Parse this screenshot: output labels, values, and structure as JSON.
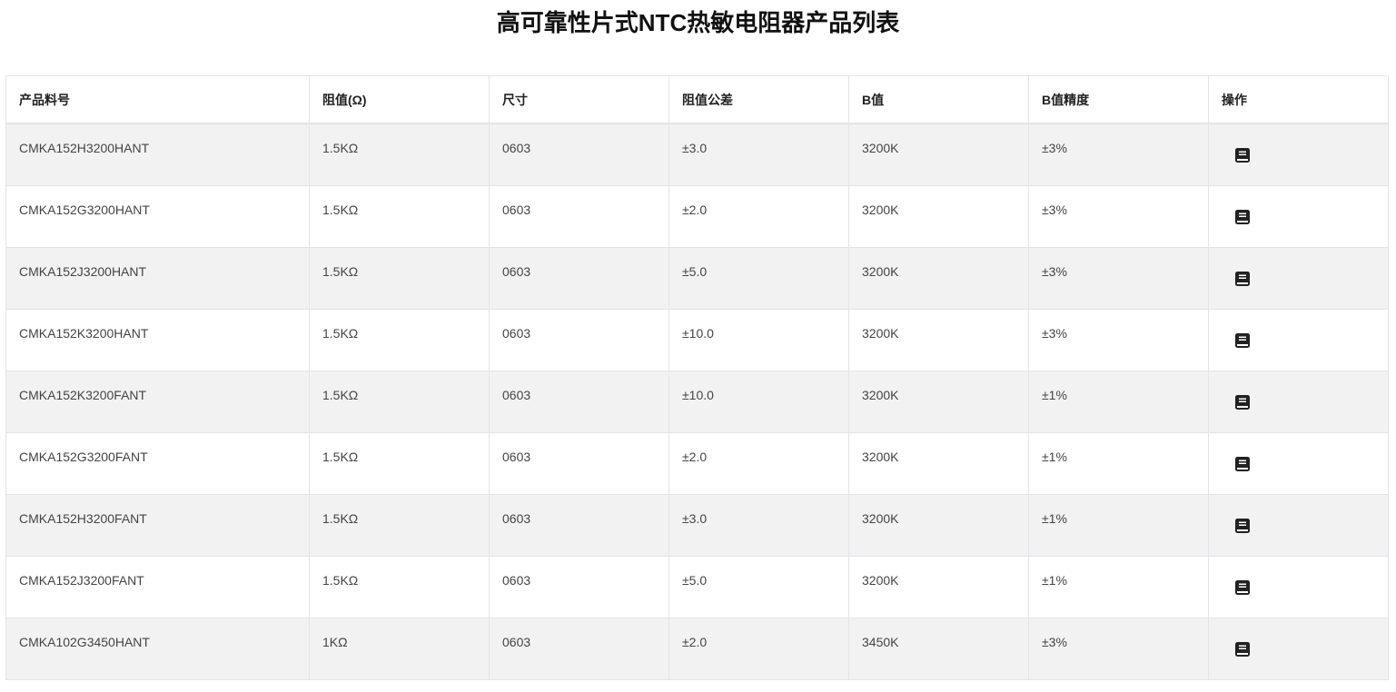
{
  "title": "高可靠性片式NTC热敏电阻器产品列表",
  "columns": [
    "产品料号",
    "阻值(Ω)",
    "尺寸",
    "阻值公差",
    "B值",
    "B值精度",
    "操作"
  ],
  "rows": [
    [
      "CMKA152H3200HANT",
      "1.5KΩ",
      "0603",
      "±3.0",
      "3200K",
      "±3%"
    ],
    [
      "CMKA152G3200HANT",
      "1.5KΩ",
      "0603",
      "±2.0",
      "3200K",
      "±3%"
    ],
    [
      "CMKA152J3200HANT",
      "1.5KΩ",
      "0603",
      "±5.0",
      "3200K",
      "±3%"
    ],
    [
      "CMKA152K3200HANT",
      "1.5KΩ",
      "0603",
      "±10.0",
      "3200K",
      "±3%"
    ],
    [
      "CMKA152K3200FANT",
      "1.5KΩ",
      "0603",
      "±10.0",
      "3200K",
      "±1%"
    ],
    [
      "CMKA152G3200FANT",
      "1.5KΩ",
      "0603",
      "±2.0",
      "3200K",
      "±1%"
    ],
    [
      "CMKA152H3200FANT",
      "1.5KΩ",
      "0603",
      "±3.0",
      "3200K",
      "±1%"
    ],
    [
      "CMKA152J3200FANT",
      "1.5KΩ",
      "0603",
      "±5.0",
      "3200K",
      "±1%"
    ],
    [
      "CMKA102G3450HANT",
      "1KΩ",
      "0603",
      "±2.0",
      "3450K",
      "±3%"
    ]
  ],
  "action_icon": "book-icon",
  "colors": {
    "stripe": "#f2f2f2",
    "border": "#e2e4e8",
    "icon": "#222222"
  }
}
